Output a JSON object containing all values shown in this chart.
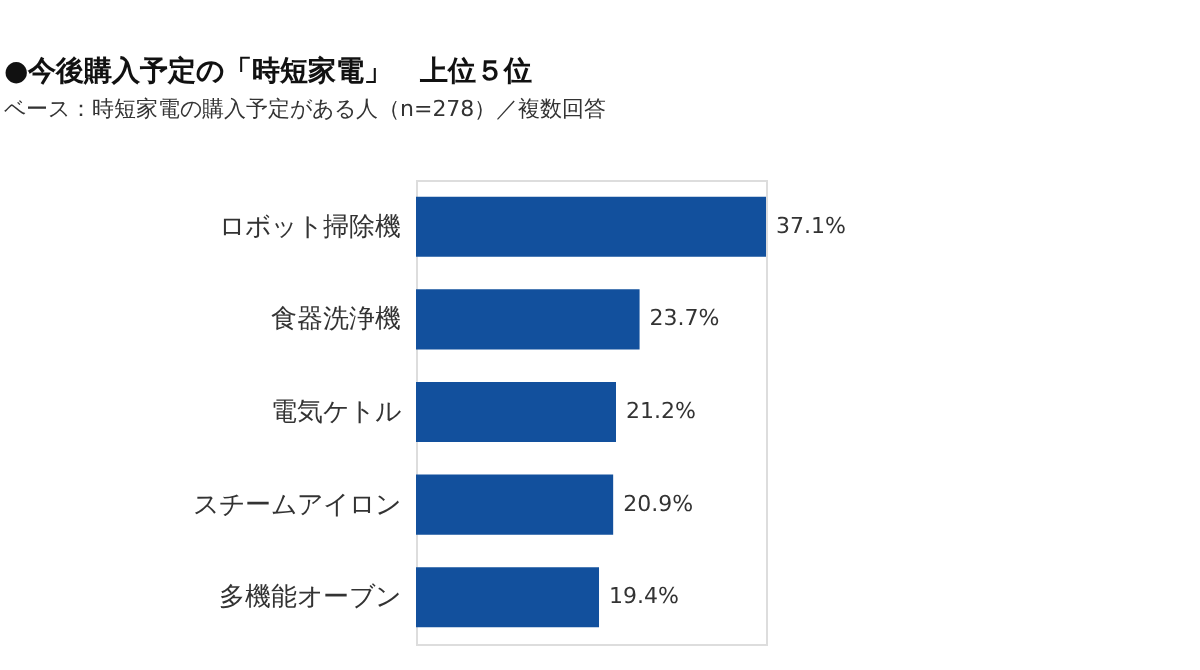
{
  "chart_data": {
    "type": "bar",
    "orientation": "horizontal",
    "title": "●今後購入予定の「時短家電」　上位５位",
    "subtitle": "ベース：時短家電の購入予定がある人（n=278）／複数回答",
    "categories": [
      "ロボット掃除機",
      "食器洗浄機",
      "電気ケトル",
      "スチームアイロン",
      "多機能オーブン"
    ],
    "values": [
      37.1,
      23.7,
      21.2,
      20.9,
      19.4
    ],
    "value_labels": [
      "37.1%",
      "23.7%",
      "21.2%",
      "20.9%",
      "19.4%"
    ],
    "color": "#12509d",
    "grid": false
  }
}
